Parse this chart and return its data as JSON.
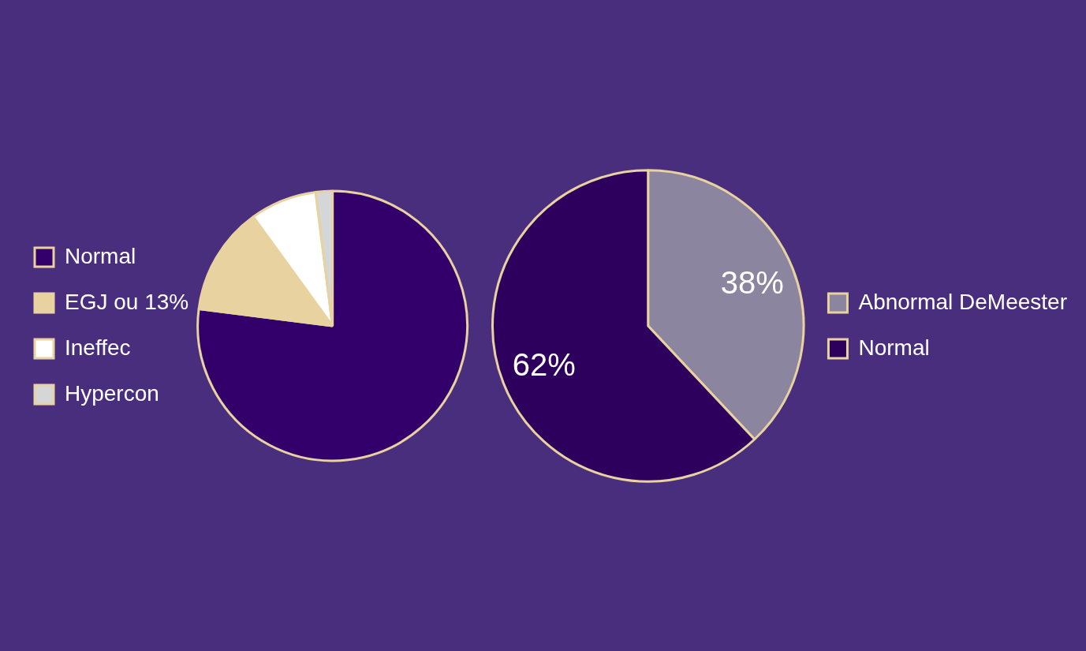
{
  "chart_data": [
    {
      "type": "pie",
      "categories": [
        "Normal",
        "EGJ ou 13%",
        "Ineffec",
        "Hypercon"
      ],
      "values": [
        77,
        13,
        8,
        2
      ],
      "colors": [
        "#33006b",
        "#e8d3a0",
        "#ffffff",
        "#d4d6d8"
      ],
      "legend": "left"
    },
    {
      "type": "pie",
      "categories": [
        "Abnormal DeMeester",
        "Normal"
      ],
      "values": [
        38,
        62
      ],
      "colors": [
        "#8b859f",
        "#2c005c"
      ],
      "value_labels": [
        "38%",
        "62%"
      ],
      "legend": "right"
    }
  ]
}
